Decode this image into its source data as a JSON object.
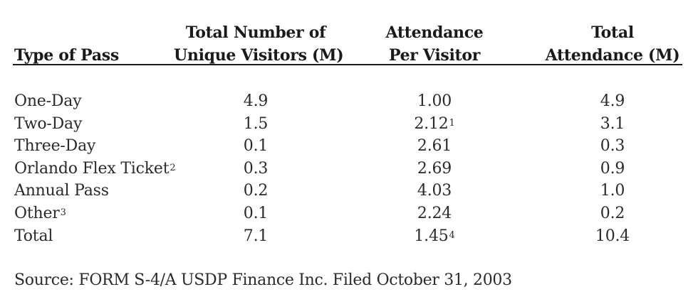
{
  "table": {
    "headers": [
      {
        "line1": "",
        "line2": "Type of Pass"
      },
      {
        "line1": "Total Number of",
        "line2": "Unique Visitors (M)"
      },
      {
        "line1": "Attendance",
        "line2": "Per Visitor"
      },
      {
        "line1": "Total",
        "line2": "Attendance (M)"
      }
    ],
    "rows": [
      {
        "type": "One-Day",
        "type_sup": "",
        "visitors": "4.9",
        "per_visitor": "1.00",
        "per_visitor_sup": "",
        "total": "4.9"
      },
      {
        "type": "Two-Day",
        "type_sup": "",
        "visitors": "1.5",
        "per_visitor": "2.12",
        "per_visitor_sup": "1",
        "total": "3.1"
      },
      {
        "type": "Three-Day",
        "type_sup": "",
        "visitors": "0.1",
        "per_visitor": "2.61",
        "per_visitor_sup": "",
        "total": "0.3"
      },
      {
        "type": "Orlando Flex Ticket",
        "type_sup": "2",
        "visitors": "0.3",
        "per_visitor": "2.69",
        "per_visitor_sup": "",
        "total": "0.9"
      },
      {
        "type": "Annual Pass",
        "type_sup": "",
        "visitors": "0.2",
        "per_visitor": "4.03",
        "per_visitor_sup": "",
        "total": "1.0"
      },
      {
        "type": "Other",
        "type_sup": "3",
        "visitors": "0.1",
        "per_visitor": "2.24",
        "per_visitor_sup": "",
        "total": "0.2"
      },
      {
        "type": "Total",
        "type_sup": "",
        "visitors": "7.1",
        "per_visitor": "1.45",
        "per_visitor_sup": "4",
        "total": "10.4"
      }
    ]
  },
  "source": "Source: FORM S-4/A USDP Finance Inc. Filed October 31, 2003"
}
